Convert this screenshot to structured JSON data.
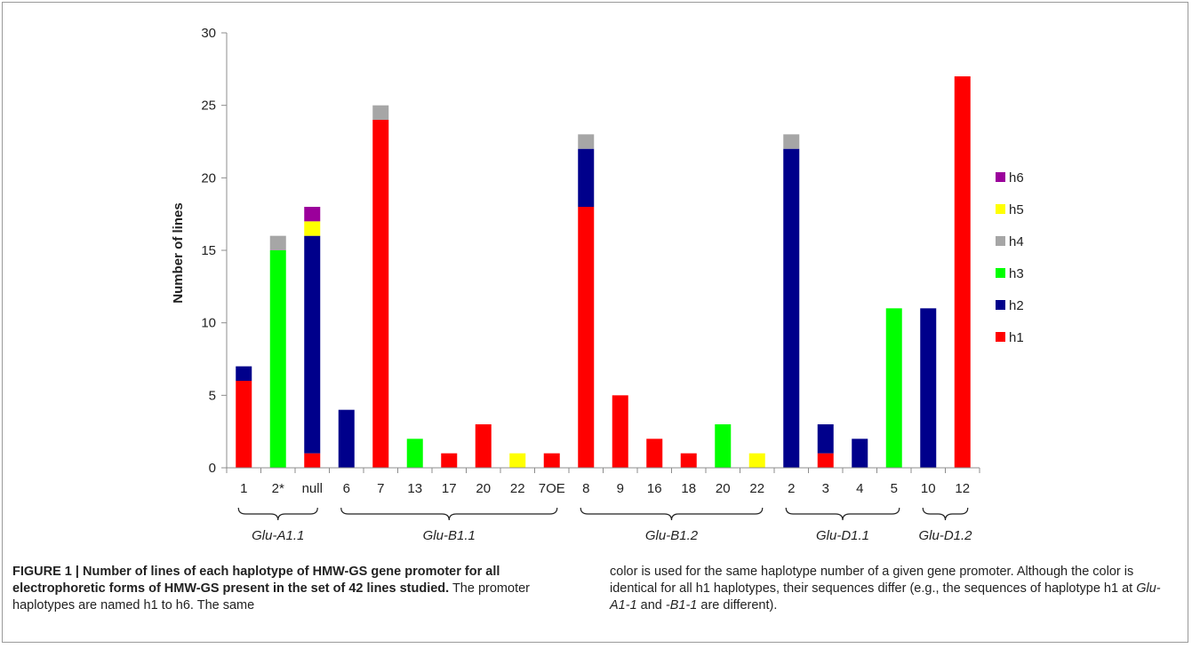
{
  "chart_data": {
    "type": "bar",
    "stacked": true,
    "ylabel": "Number of lines",
    "ylim": [
      0,
      30
    ],
    "yticks": [
      0,
      5,
      10,
      15,
      20,
      25,
      30
    ],
    "grid": false,
    "legend_position": "right",
    "categories": [
      "1",
      "2*",
      "null",
      "6",
      "7",
      "13",
      "17",
      "20",
      "22",
      "7OE",
      "8",
      "9",
      "16",
      "18",
      "20",
      "22",
      "2",
      "3",
      "4",
      "5",
      "10",
      "12"
    ],
    "groups": [
      {
        "label": "Glu-A1.1",
        "start": 0,
        "end": 2
      },
      {
        "label": "Glu-B1.1",
        "start": 3,
        "end": 9
      },
      {
        "label": "Glu-B1.2",
        "start": 10,
        "end": 15
      },
      {
        "label": "Glu-D1.1",
        "start": 16,
        "end": 19
      },
      {
        "label": "Glu-D1.2",
        "start": 20,
        "end": 21
      }
    ],
    "series": [
      {
        "name": "h1",
        "color": "#ff0000",
        "values": [
          6,
          0,
          1,
          0,
          24,
          0,
          1,
          3,
          0,
          1,
          18,
          5,
          2,
          1,
          0,
          0,
          0,
          1,
          0,
          0,
          0,
          27
        ]
      },
      {
        "name": "h2",
        "color": "#00008b",
        "values": [
          1,
          0,
          15,
          4,
          0,
          0,
          0,
          0,
          0,
          0,
          4,
          0,
          0,
          0,
          0,
          0,
          22,
          2,
          2,
          0,
          11,
          0
        ]
      },
      {
        "name": "h3",
        "color": "#00ff00",
        "values": [
          0,
          15,
          0,
          0,
          0,
          2,
          0,
          0,
          0,
          0,
          0,
          0,
          0,
          0,
          3,
          0,
          0,
          0,
          0,
          11,
          0,
          0
        ]
      },
      {
        "name": "h4",
        "color": "#a6a6a6",
        "values": [
          0,
          1,
          0,
          0,
          1,
          0,
          0,
          0,
          0,
          0,
          1,
          0,
          0,
          0,
          0,
          0,
          1,
          0,
          0,
          0,
          0,
          0
        ]
      },
      {
        "name": "h5",
        "color": "#ffff00",
        "values": [
          0,
          0,
          1,
          0,
          0,
          0,
          0,
          0,
          1,
          0,
          0,
          0,
          0,
          0,
          0,
          1,
          0,
          0,
          0,
          0,
          0,
          0
        ]
      },
      {
        "name": "h6",
        "color": "#9b009b",
        "values": [
          0,
          0,
          1,
          0,
          0,
          0,
          0,
          0,
          0,
          0,
          0,
          0,
          0,
          0,
          0,
          0,
          0,
          0,
          0,
          0,
          0,
          0
        ]
      }
    ]
  },
  "caption": {
    "bold_part": "FIGURE 1 | Number of lines of each haplotype of HMW-GS gene promoter for all electrophoretic forms of HMW-GS present in the set of 42 lines studied.",
    "text_part1": " The promoter haplotypes are named h1 to h6. The same",
    "right_part1": "color is used for the same haplotype number of a given gene promoter. Although the color is identical for all h1 haplotypes, their sequences differ (e.g., the sequences of haplotype h1 at ",
    "right_italic1": "Glu-A1-1",
    "right_part2": " and ",
    "right_italic2": "-B1-1",
    "right_part3": " are different)."
  }
}
